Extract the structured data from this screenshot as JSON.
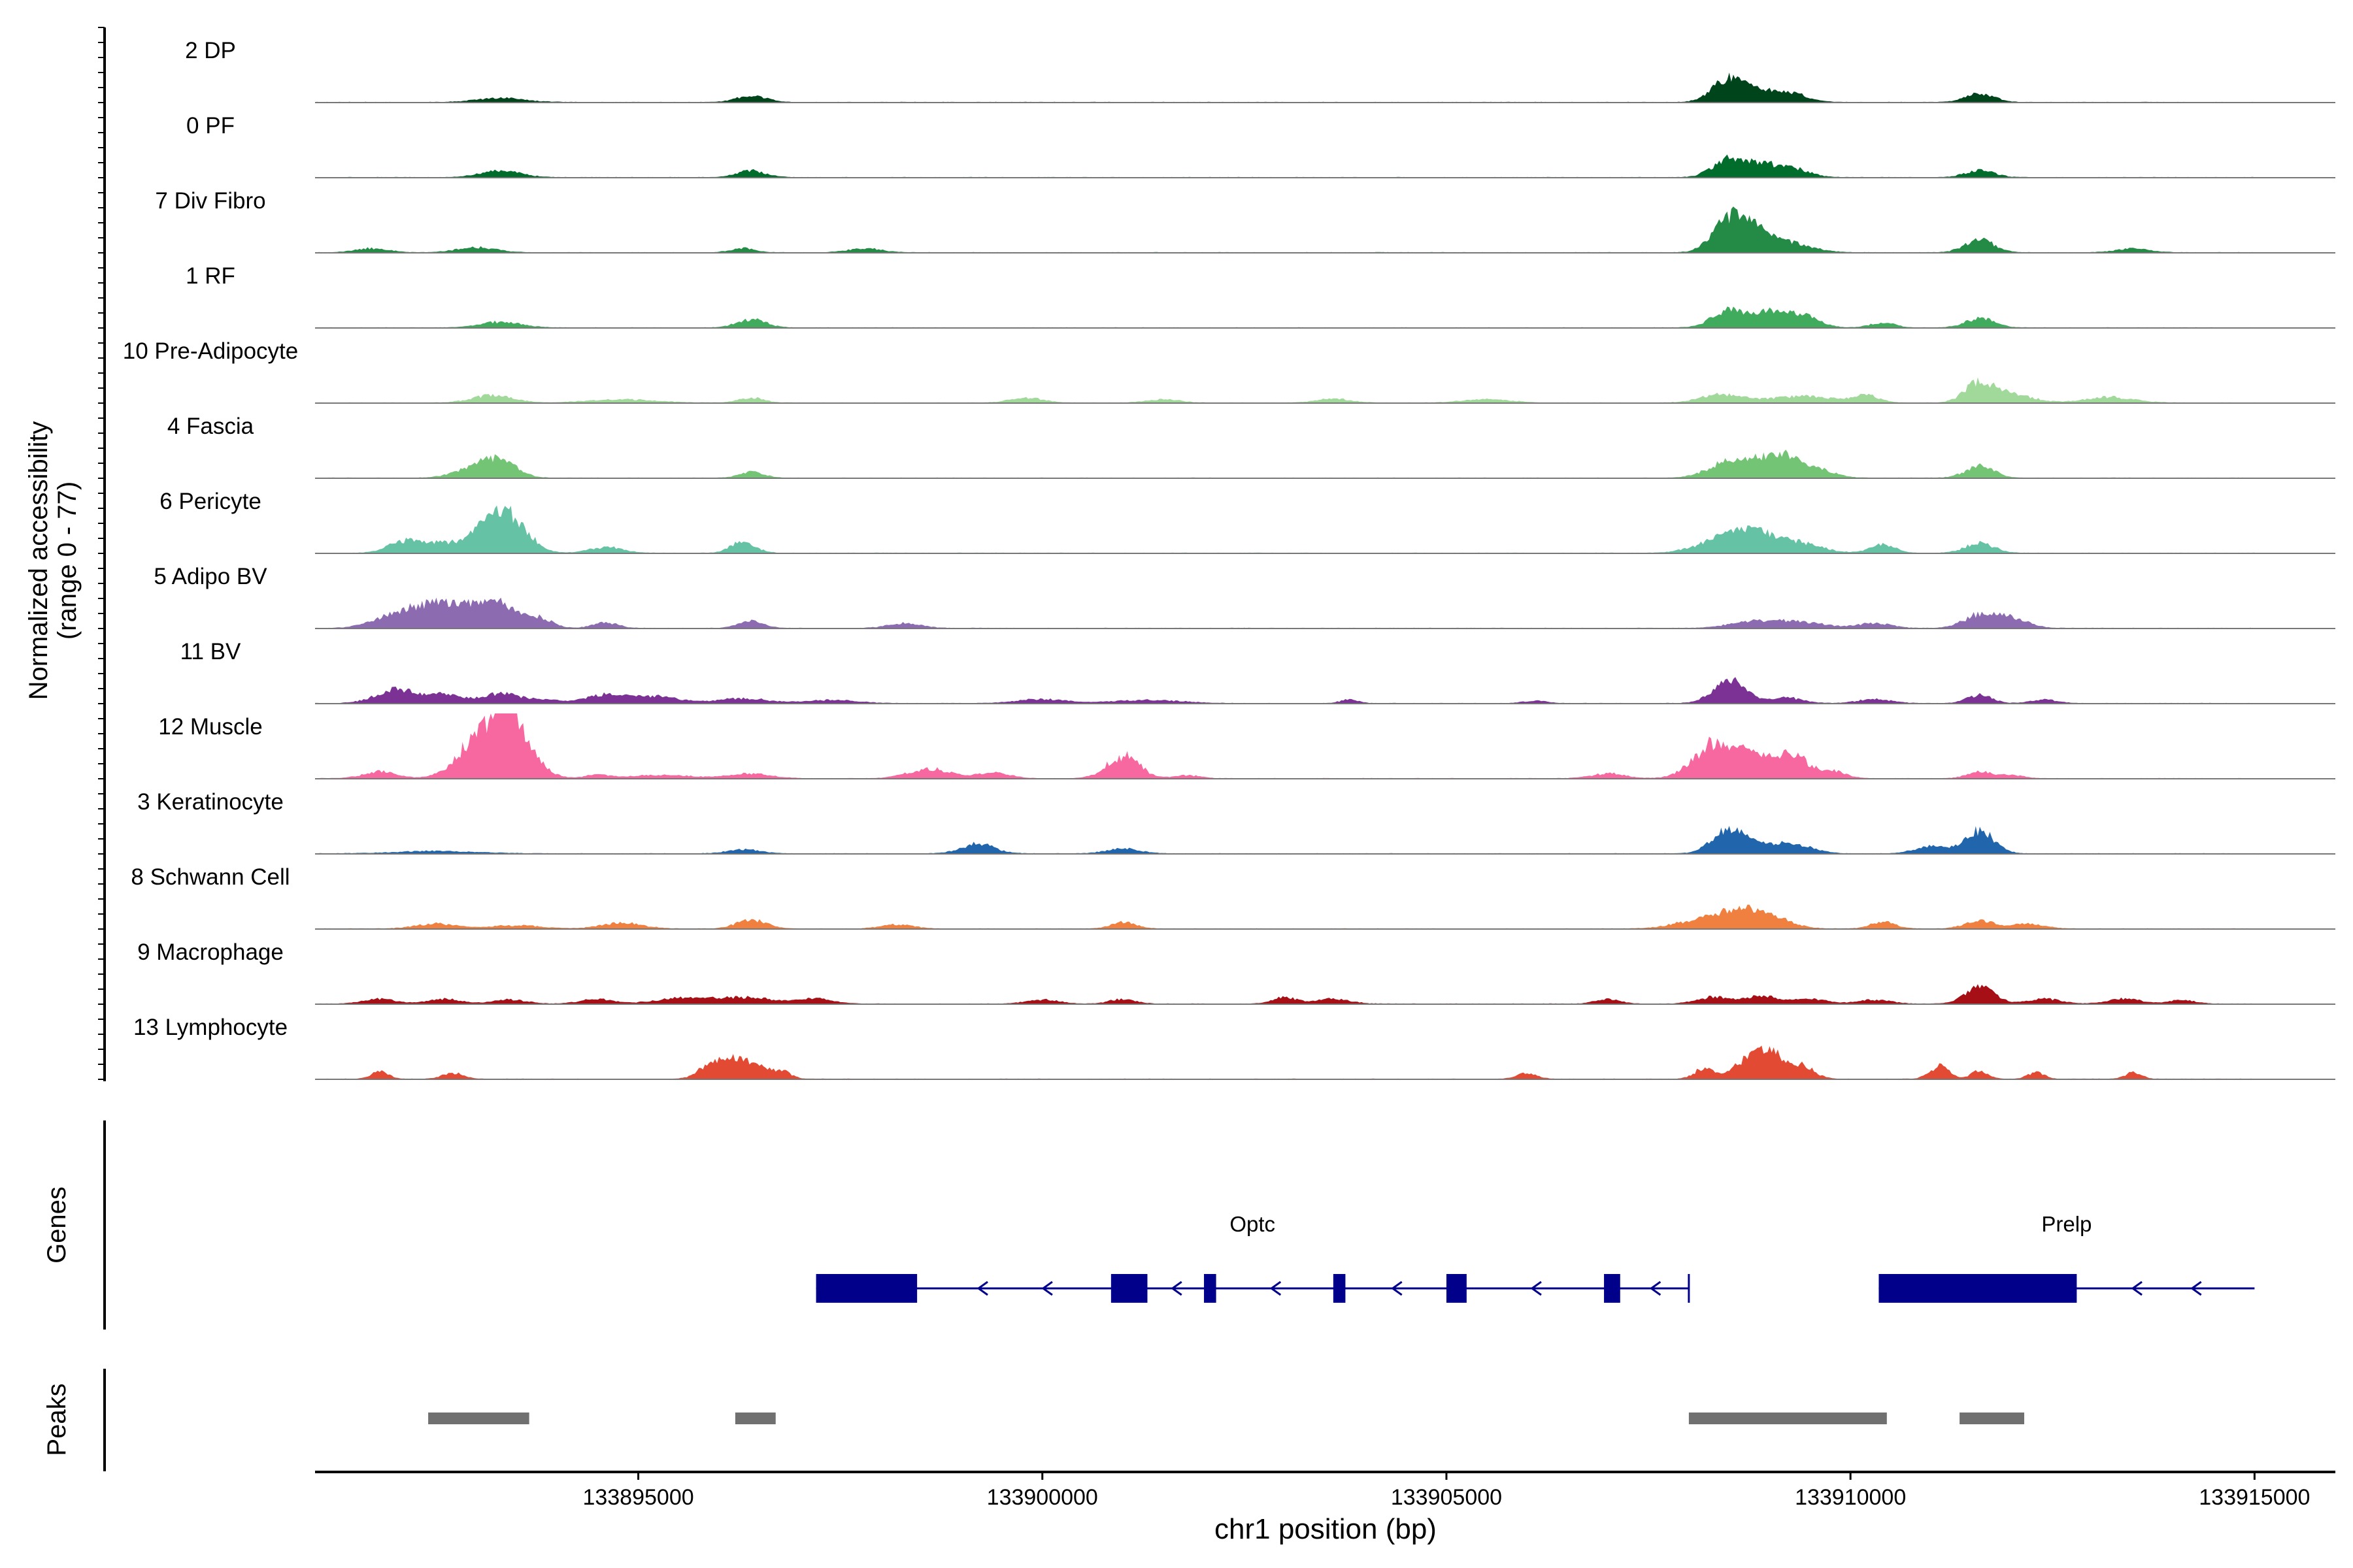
{
  "chart_data": {
    "type": "area",
    "title": "",
    "ylabel_lines": [
      "Normalized accessibility",
      "(range 0 - 77)"
    ],
    "ylim": [
      0,
      77
    ],
    "xlabel": "chr1 position (bp)",
    "xlim": [
      133891000,
      133916000
    ],
    "xticks": [
      {
        "value": 133895000,
        "label": "133895000"
      },
      {
        "value": 133900000,
        "label": "133900000"
      },
      {
        "value": 133905000,
        "label": "133905000"
      },
      {
        "value": 133910000,
        "label": "133910000"
      },
      {
        "value": 133915000,
        "label": "133915000"
      }
    ],
    "track_region": [
      133891000,
      133915000
    ],
    "series": [
      {
        "name": "2 DP",
        "color": "#00441b",
        "peaks": [
          [
            133893300,
            5,
            300
          ],
          [
            133896400,
            8,
            180
          ],
          [
            133908500,
            28,
            200
          ],
          [
            133908900,
            12,
            250
          ],
          [
            133909300,
            8,
            200
          ],
          [
            133911600,
            10,
            180
          ]
        ]
      },
      {
        "name": "0 PF",
        "color": "#006d2c",
        "peaks": [
          [
            133893300,
            8,
            250
          ],
          [
            133896400,
            8,
            180
          ],
          [
            133908500,
            22,
            200
          ],
          [
            133908900,
            14,
            200
          ],
          [
            133909300,
            10,
            200
          ],
          [
            133911600,
            8,
            180
          ]
        ]
      },
      {
        "name": "7 Div Fibro",
        "color": "#238b45",
        "peaks": [
          [
            133891700,
            5,
            200
          ],
          [
            133893000,
            6,
            250
          ],
          [
            133896300,
            5,
            150
          ],
          [
            133897800,
            5,
            200
          ],
          [
            133908500,
            40,
            200
          ],
          [
            133908800,
            22,
            200
          ],
          [
            133909200,
            12,
            300
          ],
          [
            133911600,
            16,
            180
          ],
          [
            133913500,
            5,
            200
          ]
        ]
      },
      {
        "name": "1 RF",
        "color": "#41ab5d",
        "peaks": [
          [
            133893300,
            7,
            250
          ],
          [
            133896400,
            10,
            180
          ],
          [
            133908500,
            22,
            200
          ],
          [
            133909000,
            18,
            200
          ],
          [
            133909400,
            14,
            200
          ],
          [
            133910400,
            6,
            150
          ],
          [
            133911600,
            11,
            180
          ]
        ]
      },
      {
        "name": "10 Pre-Adipocyte",
        "color": "#a1d99b",
        "peaks": [
          [
            133893200,
            9,
            250
          ],
          [
            133894800,
            4,
            400
          ],
          [
            133896400,
            6,
            150
          ],
          [
            133899800,
            6,
            200
          ],
          [
            133901500,
            4,
            200
          ],
          [
            133903600,
            5,
            200
          ],
          [
            133905500,
            4,
            300
          ],
          [
            133908400,
            10,
            250
          ],
          [
            133909400,
            8,
            400
          ],
          [
            133910200,
            9,
            150
          ],
          [
            133911600,
            24,
            180
          ],
          [
            133912000,
            10,
            250
          ],
          [
            133913200,
            7,
            300
          ]
        ]
      },
      {
        "name": "4 Fascia",
        "color": "#74c476",
        "peaks": [
          [
            133893000,
            12,
            250
          ],
          [
            133893300,
            18,
            200
          ],
          [
            133896400,
            7,
            150
          ],
          [
            133908500,
            20,
            250
          ],
          [
            133908900,
            14,
            200
          ],
          [
            133909200,
            23,
            200
          ],
          [
            133909600,
            10,
            200
          ],
          [
            133911600,
            14,
            180
          ]
        ]
      },
      {
        "name": "6 Pericyte",
        "color": "#66c2a4",
        "peaks": [
          [
            133892100,
            14,
            200
          ],
          [
            133892600,
            12,
            250
          ],
          [
            133893200,
            42,
            220
          ],
          [
            133893500,
            26,
            200
          ],
          [
            133894600,
            7,
            200
          ],
          [
            133896300,
            14,
            150
          ],
          [
            133908400,
            16,
            300
          ],
          [
            133908800,
            20,
            250
          ],
          [
            133909300,
            13,
            300
          ],
          [
            133910400,
            10,
            150
          ],
          [
            133911600,
            12,
            180
          ]
        ]
      },
      {
        "name": "5 Adipo BV",
        "color": "#8c6bb1",
        "peaks": [
          [
            133891900,
            10,
            250
          ],
          [
            133892400,
            25,
            300
          ],
          [
            133892900,
            18,
            300
          ],
          [
            133893300,
            24,
            250
          ],
          [
            133893800,
            10,
            150
          ],
          [
            133894600,
            7,
            150
          ],
          [
            133896400,
            9,
            150
          ],
          [
            133898300,
            6,
            200
          ],
          [
            133908800,
            8,
            300
          ],
          [
            133909400,
            7,
            300
          ],
          [
            133910300,
            6,
            200
          ],
          [
            133911600,
            16,
            200
          ],
          [
            133912000,
            12,
            200
          ]
        ]
      },
      {
        "name": "11 BV",
        "color": "#7b3294",
        "peaks": [
          [
            133892000,
            16,
            250
          ],
          [
            133892600,
            10,
            250
          ],
          [
            133893300,
            12,
            200
          ],
          [
            133893800,
            5,
            200
          ],
          [
            133894600,
            10,
            250
          ],
          [
            133895200,
            8,
            300
          ],
          [
            133896300,
            6,
            300
          ],
          [
            133897400,
            4,
            300
          ],
          [
            133900000,
            5,
            300
          ],
          [
            133901300,
            4,
            400
          ],
          [
            133903800,
            5,
            100
          ],
          [
            133906100,
            3,
            150
          ],
          [
            133908500,
            28,
            200
          ],
          [
            133909200,
            7,
            200
          ],
          [
            133910300,
            5,
            200
          ],
          [
            133911600,
            10,
            150
          ],
          [
            133912400,
            5,
            150
          ]
        ]
      },
      {
        "name": "12 Muscle",
        "color": "#f768a1",
        "peaks": [
          [
            133891800,
            8,
            200
          ],
          [
            133893000,
            46,
            250
          ],
          [
            133893400,
            70,
            200
          ],
          [
            133893700,
            12,
            200
          ],
          [
            133894500,
            4,
            150
          ],
          [
            133895300,
            4,
            400
          ],
          [
            133896400,
            6,
            250
          ],
          [
            133898600,
            12,
            250
          ],
          [
            133899400,
            7,
            200
          ],
          [
            133901000,
            28,
            200
          ],
          [
            133901800,
            4,
            150
          ],
          [
            133907000,
            6,
            200
          ],
          [
            133908300,
            40,
            250
          ],
          [
            133908800,
            25,
            250
          ],
          [
            133909300,
            26,
            200
          ],
          [
            133909800,
            8,
            150
          ],
          [
            133911600,
            8,
            150
          ],
          [
            133912000,
            4,
            150
          ]
        ]
      },
      {
        "name": "3 Keratinocyte",
        "color": "#2166ac",
        "peaks": [
          [
            133892500,
            3,
            500
          ],
          [
            133896300,
            5,
            200
          ],
          [
            133899200,
            12,
            200
          ],
          [
            133901000,
            6,
            200
          ],
          [
            133908500,
            30,
            200
          ],
          [
            133909000,
            11,
            250
          ],
          [
            133909400,
            7,
            200
          ],
          [
            133911000,
            9,
            200
          ],
          [
            133911600,
            28,
            180
          ]
        ]
      },
      {
        "name": "8 Schwann Cell",
        "color": "#f08040",
        "peaks": [
          [
            133892500,
            6,
            250
          ],
          [
            133893500,
            4,
            300
          ],
          [
            133894800,
            7,
            250
          ],
          [
            133896400,
            11,
            180
          ],
          [
            133898200,
            5,
            200
          ],
          [
            133901000,
            8,
            150
          ],
          [
            133908100,
            9,
            300
          ],
          [
            133908600,
            20,
            250
          ],
          [
            133909000,
            14,
            250
          ],
          [
            133910400,
            8,
            150
          ],
          [
            133911600,
            10,
            180
          ],
          [
            133912200,
            6,
            200
          ]
        ]
      },
      {
        "name": "9 Macrophage",
        "color": "#a50f15",
        "peaks": [
          [
            133891800,
            6,
            200
          ],
          [
            133892600,
            6,
            200
          ],
          [
            133893400,
            5,
            200
          ],
          [
            133894500,
            6,
            200
          ],
          [
            133895500,
            6,
            300
          ],
          [
            133896300,
            8,
            400
          ],
          [
            133897200,
            6,
            200
          ],
          [
            133900000,
            5,
            200
          ],
          [
            133901000,
            6,
            150
          ],
          [
            133903000,
            8,
            150
          ],
          [
            133903600,
            6,
            200
          ],
          [
            133907000,
            6,
            150
          ],
          [
            133908300,
            8,
            200
          ],
          [
            133908900,
            10,
            200
          ],
          [
            133909500,
            6,
            200
          ],
          [
            133910300,
            5,
            200
          ],
          [
            133911600,
            22,
            180
          ],
          [
            133912400,
            6,
            200
          ],
          [
            133913400,
            6,
            200
          ],
          [
            133914100,
            5,
            150
          ]
        ]
      },
      {
        "name": "13 Lymphocyte",
        "color": "#e34a33",
        "peaks": [
          [
            133891800,
            10,
            100
          ],
          [
            133892700,
            8,
            120
          ],
          [
            133895900,
            18,
            150
          ],
          [
            133896200,
            22,
            150
          ],
          [
            133896500,
            14,
            150
          ],
          [
            133896800,
            8,
            100
          ],
          [
            133906000,
            8,
            120
          ],
          [
            133908200,
            14,
            120
          ],
          [
            133908700,
            22,
            150
          ],
          [
            133909000,
            34,
            150
          ],
          [
            133909400,
            16,
            150
          ],
          [
            133911100,
            16,
            120
          ],
          [
            133911600,
            10,
            100
          ],
          [
            133912300,
            8,
            100
          ],
          [
            133913500,
            8,
            100
          ]
        ]
      }
    ],
    "genes": {
      "axis_label": "Genes",
      "color": "#00008b",
      "items": [
        {
          "name": "Optc",
          "strand": "-",
          "start": 133897200,
          "end": 133908000,
          "exons": [
            [
              133897200,
              133898450
            ],
            [
              133900850,
              133901300
            ],
            [
              133902000,
              133902150
            ],
            [
              133903600,
              133903750
            ],
            [
              133905000,
              133905250
            ],
            [
              133906950,
              133907150
            ]
          ]
        },
        {
          "name": "Prelp",
          "strand": "-",
          "start": 133910350,
          "end": 133915000,
          "exons": [
            [
              133910350,
              133912800
            ]
          ]
        }
      ]
    },
    "peaks_track": {
      "axis_label": "Peaks",
      "color": "#707070",
      "regions": [
        [
          133892400,
          133893650
        ],
        [
          133896200,
          133896700
        ],
        [
          133908000,
          133910450
        ],
        [
          133911350,
          133912150
        ]
      ]
    },
    "legend": "none",
    "grid": false
  }
}
